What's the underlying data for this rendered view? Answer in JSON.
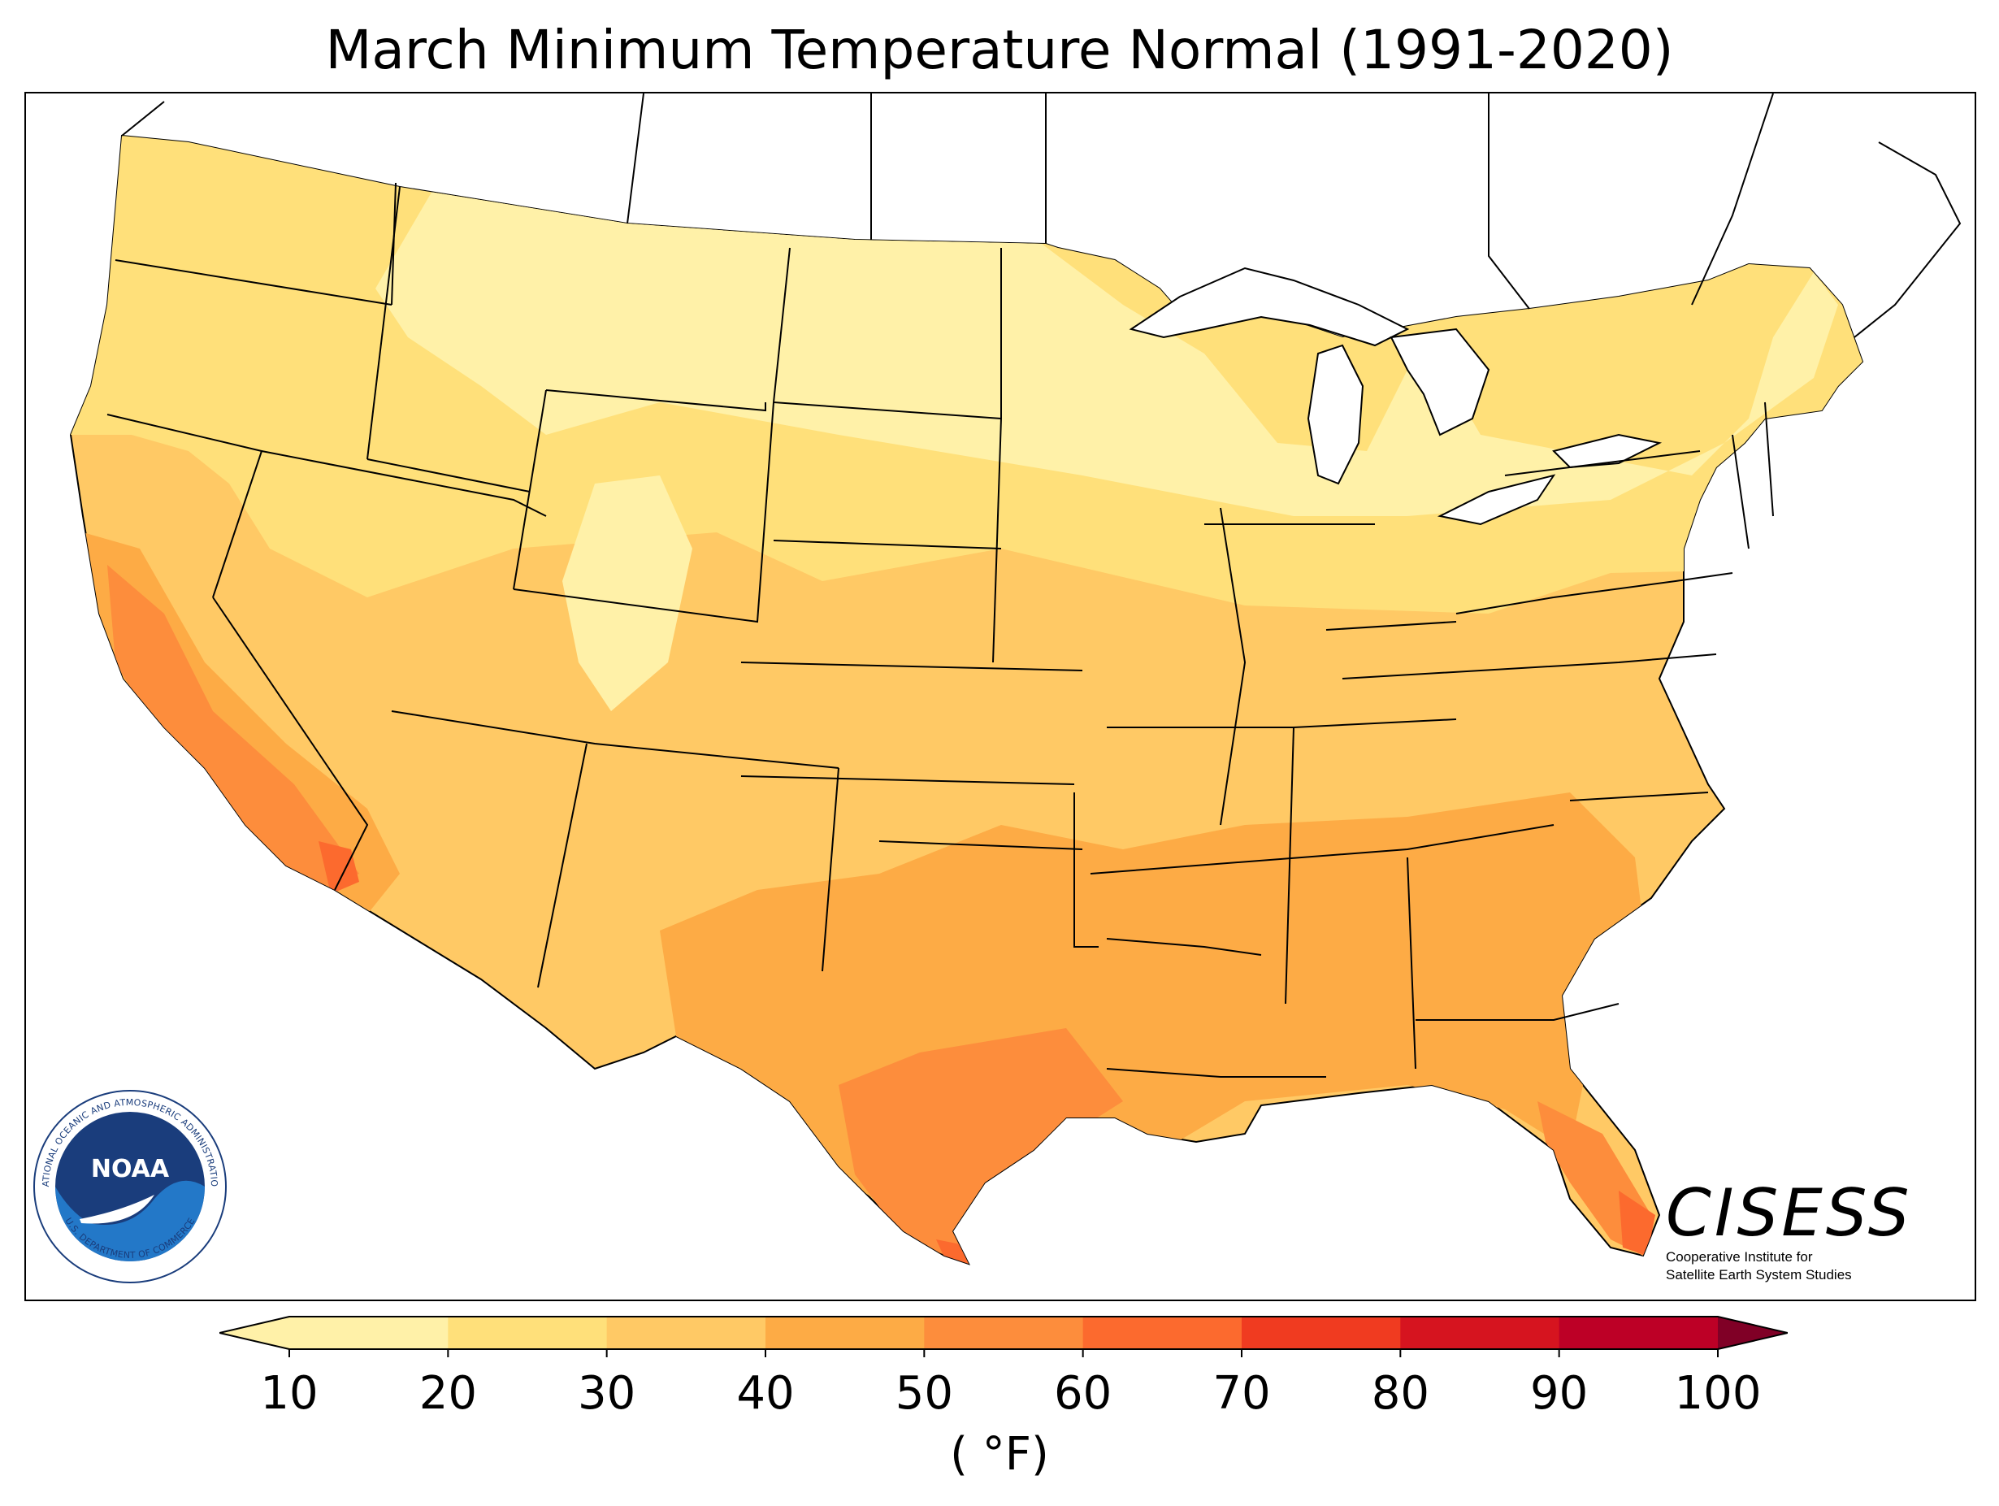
{
  "title": "March Minimum Temperature Normal (1991-2020)",
  "colorbar": {
    "ticks": [
      "10",
      "20",
      "30",
      "40",
      "50",
      "60",
      "70",
      "80",
      "90",
      "100"
    ],
    "colors": [
      "#fff1a8",
      "#ffe07a",
      "#ffc965",
      "#fdab45",
      "#fd8d3c",
      "#fc6a2e",
      "#f03b20",
      "#d6141f",
      "#bd0026",
      "#800026"
    ],
    "unit": "( °F)"
  },
  "map": {
    "bands": [
      {
        "label": "10-20",
        "color": "#fff1a8"
      },
      {
        "label": "20-30",
        "color": "#ffe07a"
      },
      {
        "label": "30-40",
        "color": "#ffc965"
      },
      {
        "label": "40-50",
        "color": "#fdab45"
      },
      {
        "label": "50-60",
        "color": "#fd8d3c"
      },
      {
        "label": "60-70",
        "color": "#fc6a2e"
      }
    ]
  },
  "logos": {
    "noaa": {
      "name": "NOAA",
      "ring_top": "NATIONAL OCEANIC AND ATMOSPHERIC ADMINISTRATION",
      "ring_bottom": "U.S. DEPARTMENT OF COMMERCE"
    },
    "cisess": {
      "name": "CISESS",
      "line1": "Cooperative Institute for",
      "line2": "Satellite Earth System Studies"
    }
  }
}
